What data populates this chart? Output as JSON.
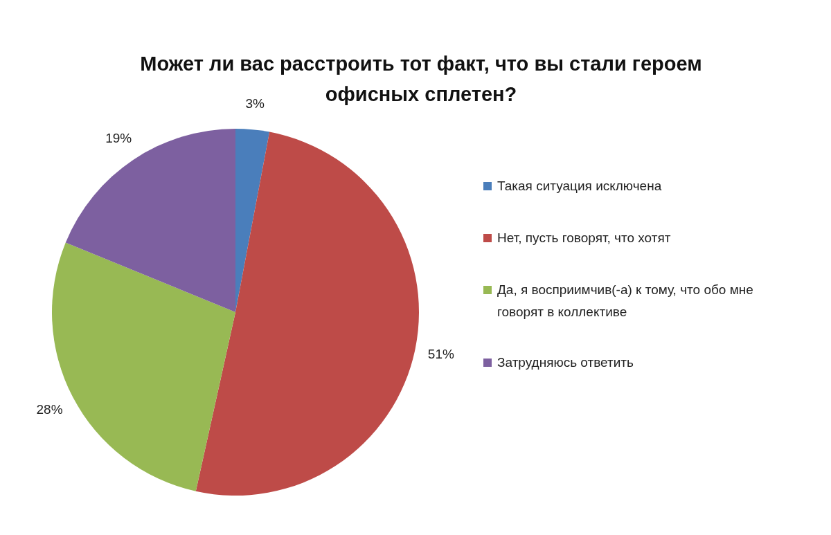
{
  "chart_data": {
    "type": "pie",
    "title": "Может ли вас расстроить тот факт, что вы стали героем офисных сплетен?",
    "categories": [
      "Такая ситуация исключена",
      "Нет, пусть говорят, что хотят",
      "Да, я восприимчив(-а) к тому, что обо мне говорят в коллективе",
      "Затрудняюсь ответить"
    ],
    "values": [
      3,
      51,
      28,
      19
    ],
    "value_labels": [
      "3%",
      "51%",
      "28%",
      "19%"
    ],
    "colors": [
      "#4a7ebb",
      "#be4b48",
      "#98b954",
      "#7d60a0"
    ],
    "legend": "right"
  }
}
